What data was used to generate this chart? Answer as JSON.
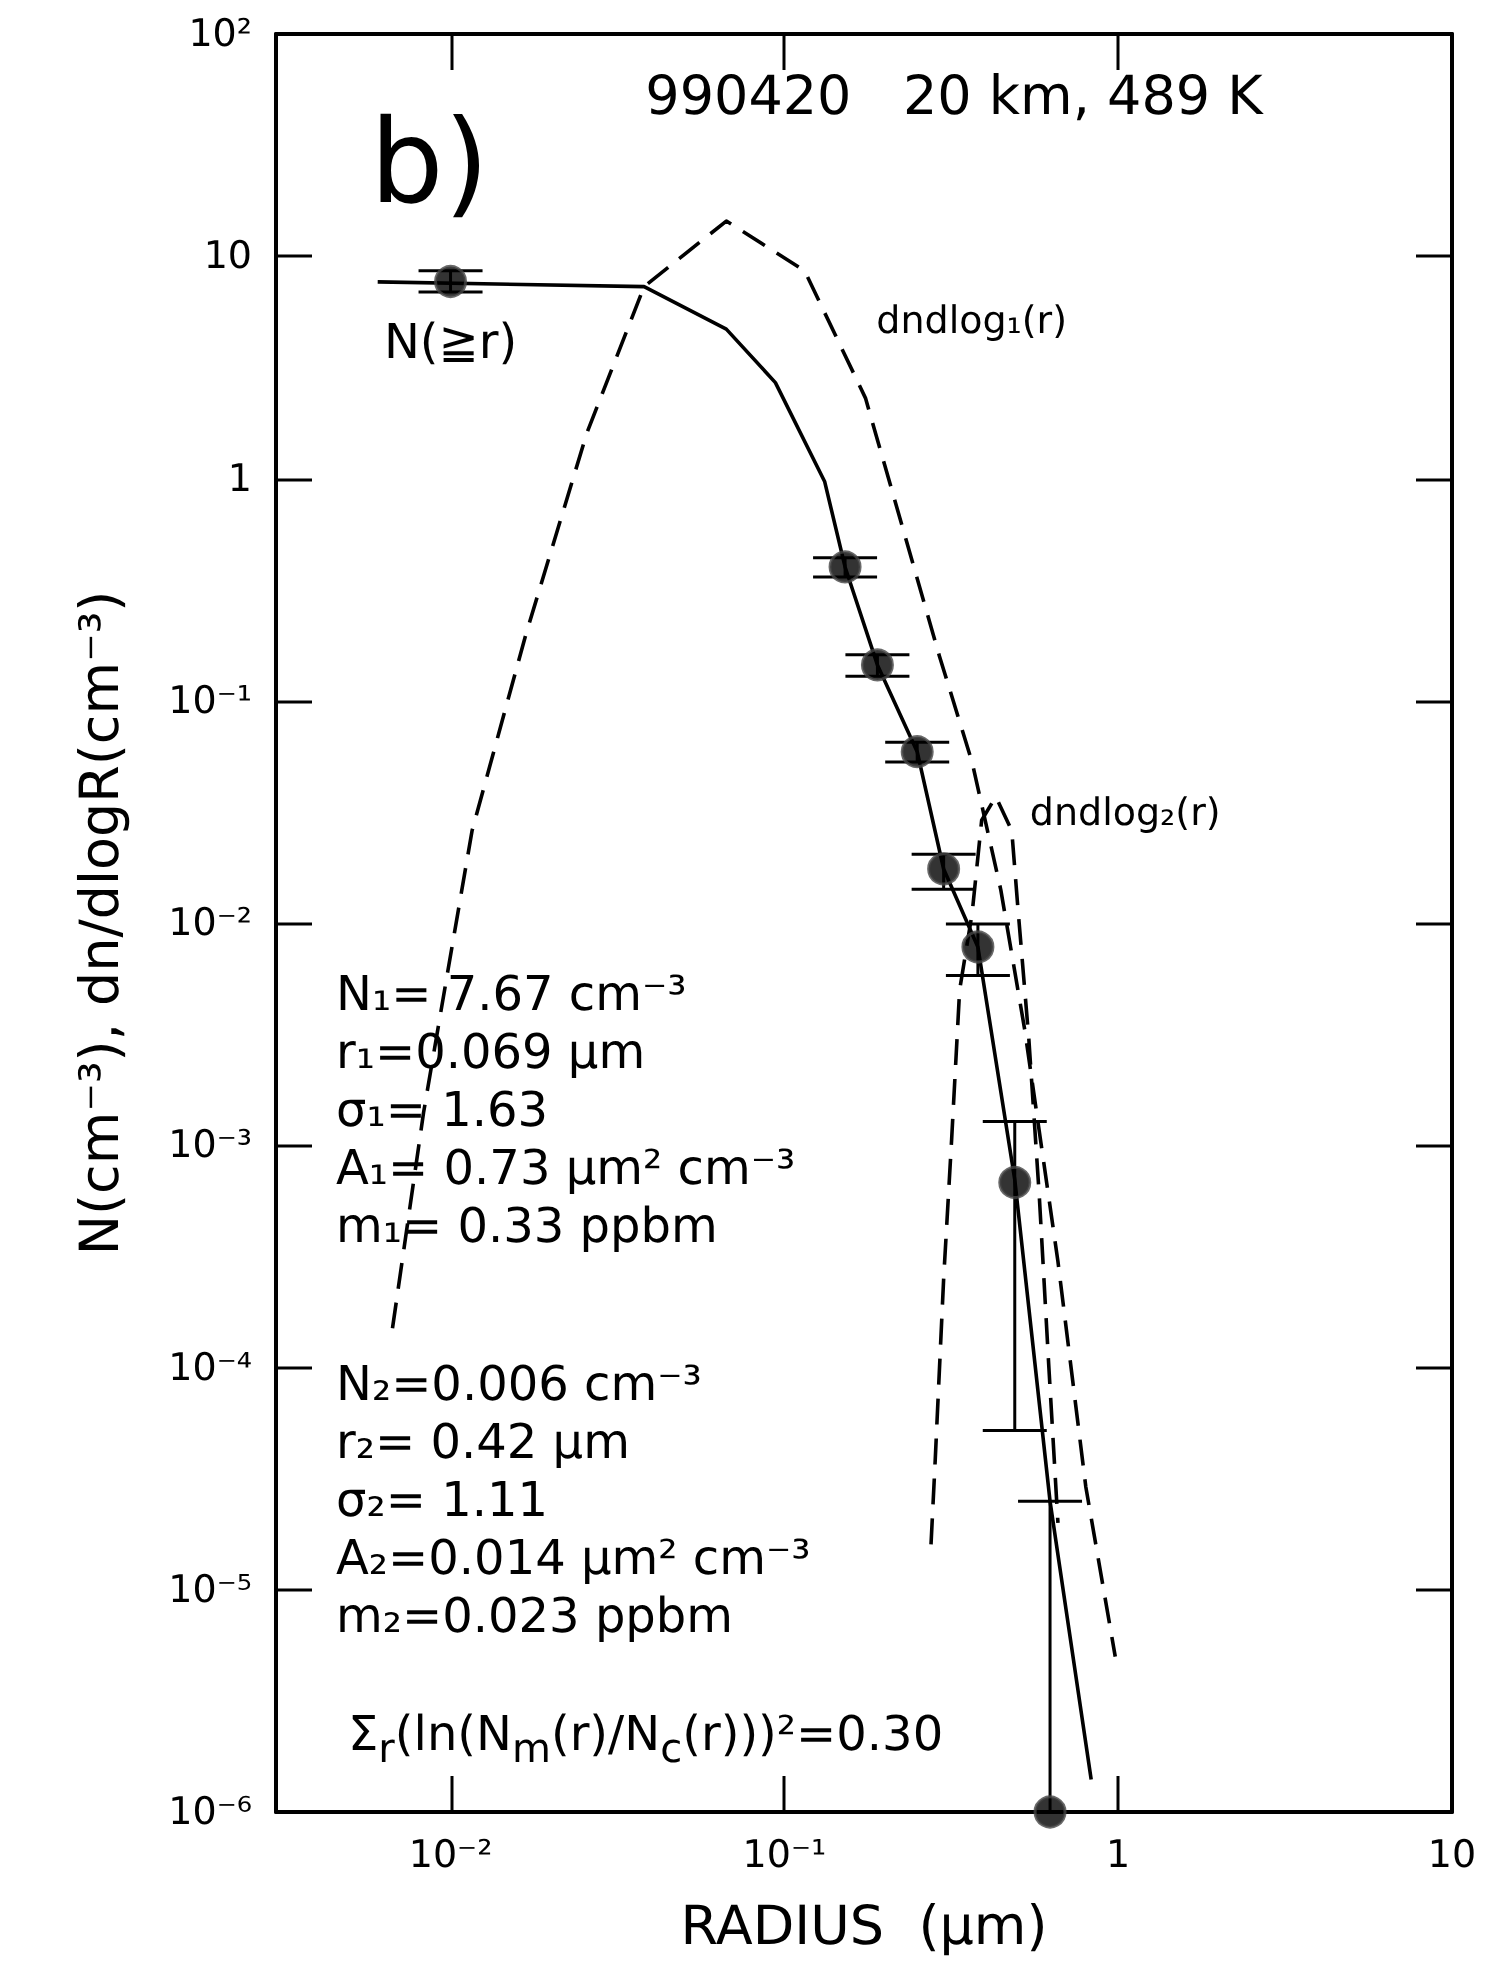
{
  "chart_data": {
    "type": "scatter",
    "title": "990420   20 km, 489 K",
    "xlabel": "RADIUS  (μm)",
    "ylabel": "N(cm⁻³), dn/dlogR(cm⁻³)",
    "log": "xy",
    "grid": false,
    "legend": false,
    "xlim": [
      0.003,
      10
    ],
    "ylim": [
      1e-06,
      100
    ],
    "xticks": [
      {
        "value": 0.01,
        "label": "10⁻²"
      },
      {
        "value": 0.1,
        "label": "10⁻¹"
      },
      1,
      10
    ],
    "yticks": [
      {
        "value": 1e-06,
        "label": "10⁻⁶"
      },
      {
        "value": 1e-05,
        "label": "10⁻⁵"
      },
      {
        "value": 0.0001,
        "label": "10⁻⁴"
      },
      {
        "value": 0.001,
        "label": "10⁻³"
      },
      {
        "value": 0.01,
        "label": "10⁻²"
      },
      {
        "value": 0.1,
        "label": "10⁻¹"
      },
      1,
      10,
      {
        "value": 100,
        "label": "10²"
      }
    ],
    "annotations": [
      "b)",
      {
        "text": "N(≧r)",
        "x": 0.01,
        "y": 7.7
      },
      "N₁=  7.67  cm⁻³",
      "r₁=0.069  μm",
      "σ₁=  1.63",
      "A₁=  0.73  μm²  cm⁻³",
      "m₁=  0.33  ppbm",
      "N₂=0.006  cm⁻³",
      "r₂=  0.42  μm",
      "σ₂=  1.11",
      "A₂=0.014  μm²  cm⁻³",
      "m₂=0.023  ppbm",
      "Σ$_{r}$(ln(N$_{m}$(r)/N$_{c}$(r)))²=0.30"
    ],
    "series": [
      {
        "color": "#000000",
        "marker": "circle",
        "x": [
          0.01,
          0.152,
          0.19,
          0.25,
          0.3,
          0.38,
          0.49,
          0.625
        ],
        "values": [
          7.7,
          0.4,
          0.145,
          0.059,
          0.0175,
          0.0078,
          0.00068,
          1e-06
        ],
        "errors": [
          [
            6.9,
            8.6
          ],
          [
            0.36,
            0.44
          ],
          [
            0.129,
            0.161
          ],
          [
            0.053,
            0.065
          ],
          [
            0.0142,
            0.0204
          ],
          [
            0.0058,
            0.0099
          ],
          [
            5.2e-05,
            0.00128
          ],
          [
            1e-06,
            2.5e-05
          ]
        ]
      },
      {
        "type": "line",
        "color": "#000000",
        "marker": "none",
        "line_style": "solid",
        "x": [
          0.00605,
          0.038,
          0.067,
          0.094,
          0.132,
          0.152,
          0.19,
          0.25,
          0.3,
          0.38,
          0.49,
          0.625,
          0.83
        ],
        "values": [
          7.67,
          7.3,
          4.7,
          2.7,
          0.97,
          0.4,
          0.145,
          0.059,
          0.0175,
          0.0078,
          0.0007,
          2.5e-05,
          1.4e-06
        ]
      },
      {
        "name": "dndlog₁(r)",
        "type": "line",
        "color": "#000000",
        "marker": "none",
        "line_style": "dashed",
        "x": [
          0.0067,
          0.0083,
          0.0098,
          0.0116,
          0.0168,
          0.0256,
          0.038,
          0.067,
          0.115,
          0.175,
          0.291,
          0.365,
          0.445,
          0.525,
          0.66,
          0.8,
          0.98
        ],
        "values": [
          0.00015,
          0.0014,
          0.006,
          0.026,
          0.198,
          1.6,
          7.3,
          14.4,
          8.6,
          2.3,
          0.16,
          0.053,
          0.0141,
          0.0033,
          0.0003,
          2.9e-05,
          5e-06
        ]
      },
      {
        "name": "dndlog₂(r)",
        "type": "line",
        "color": "#000000",
        "marker": "none",
        "line_style": "dashed",
        "x": [
          0.275,
          0.283,
          0.3,
          0.317,
          0.335,
          0.365,
          0.39,
          0.43,
          0.48,
          0.5,
          0.54,
          0.58,
          0.62,
          0.66
        ],
        "values": [
          1.6e-05,
          3.8e-05,
          0.00025,
          0.00106,
          0.005,
          0.011,
          0.029,
          0.037,
          0.026,
          0.012,
          0.003,
          0.0006,
          0.0001,
          2e-05
        ]
      }
    ]
  }
}
